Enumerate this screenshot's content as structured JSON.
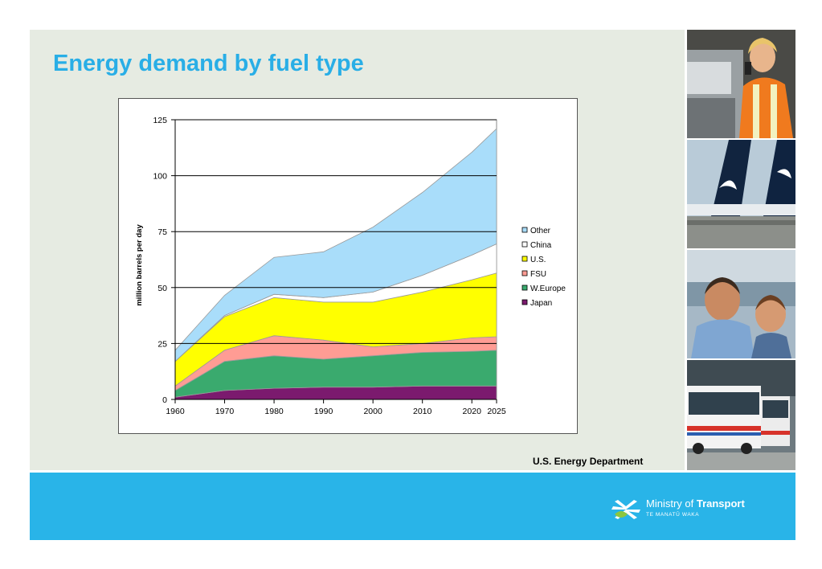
{
  "slide": {
    "title": "Energy demand by fuel type",
    "source": "U.S. Energy Department"
  },
  "branding": {
    "org_prefix": "Ministry of ",
    "org_bold": "Transport",
    "org_maori": "TE MANATŪ WAKA"
  },
  "photos": [
    {
      "alt": "Woman in high-visibility vest on phone"
    },
    {
      "alt": "Air New Zealand aircraft tails"
    },
    {
      "alt": "Man and boy on ferry"
    },
    {
      "alt": "City buses"
    }
  ],
  "colors": {
    "title": "#29aee6",
    "footer": "#29b4e8",
    "content_bg": "#e6ebe2"
  },
  "chart_data": {
    "type": "area",
    "stacked": true,
    "title": "",
    "xlabel": "",
    "ylabel": "million barrels per day",
    "x": [
      1960,
      1970,
      1980,
      1990,
      2000,
      2010,
      2020,
      2025
    ],
    "ylim": [
      0,
      125
    ],
    "yticks": [
      0,
      25,
      50,
      75,
      100,
      125
    ],
    "grid": "horizontal",
    "legend_position": "right",
    "series": [
      {
        "name": "Japan",
        "color": "#7b1a6e",
        "values": [
          1,
          4,
          5,
          5.5,
          5.5,
          6,
          6,
          6
        ]
      },
      {
        "name": "W.Europe",
        "color": "#3aaa6e",
        "values": [
          3,
          13,
          14.5,
          12.5,
          14,
          15,
          15.5,
          16
        ]
      },
      {
        "name": "FSU",
        "color": "#ff9c94",
        "values": [
          2,
          5,
          9,
          8.5,
          4,
          4,
          6,
          6
        ]
      },
      {
        "name": "U.S.",
        "color": "#ffff00",
        "values": [
          11,
          15,
          17,
          17,
          20,
          23,
          26,
          28.5
        ]
      },
      {
        "name": "China",
        "color": "#ffffff",
        "values": [
          0,
          0.5,
          1.5,
          2,
          4.5,
          7.5,
          11,
          13
        ]
      },
      {
        "name": "Other",
        "color": "#a9ddfa",
        "values": [
          5,
          9,
          16.5,
          20.5,
          29,
          37,
          46,
          51.5
        ]
      }
    ]
  }
}
